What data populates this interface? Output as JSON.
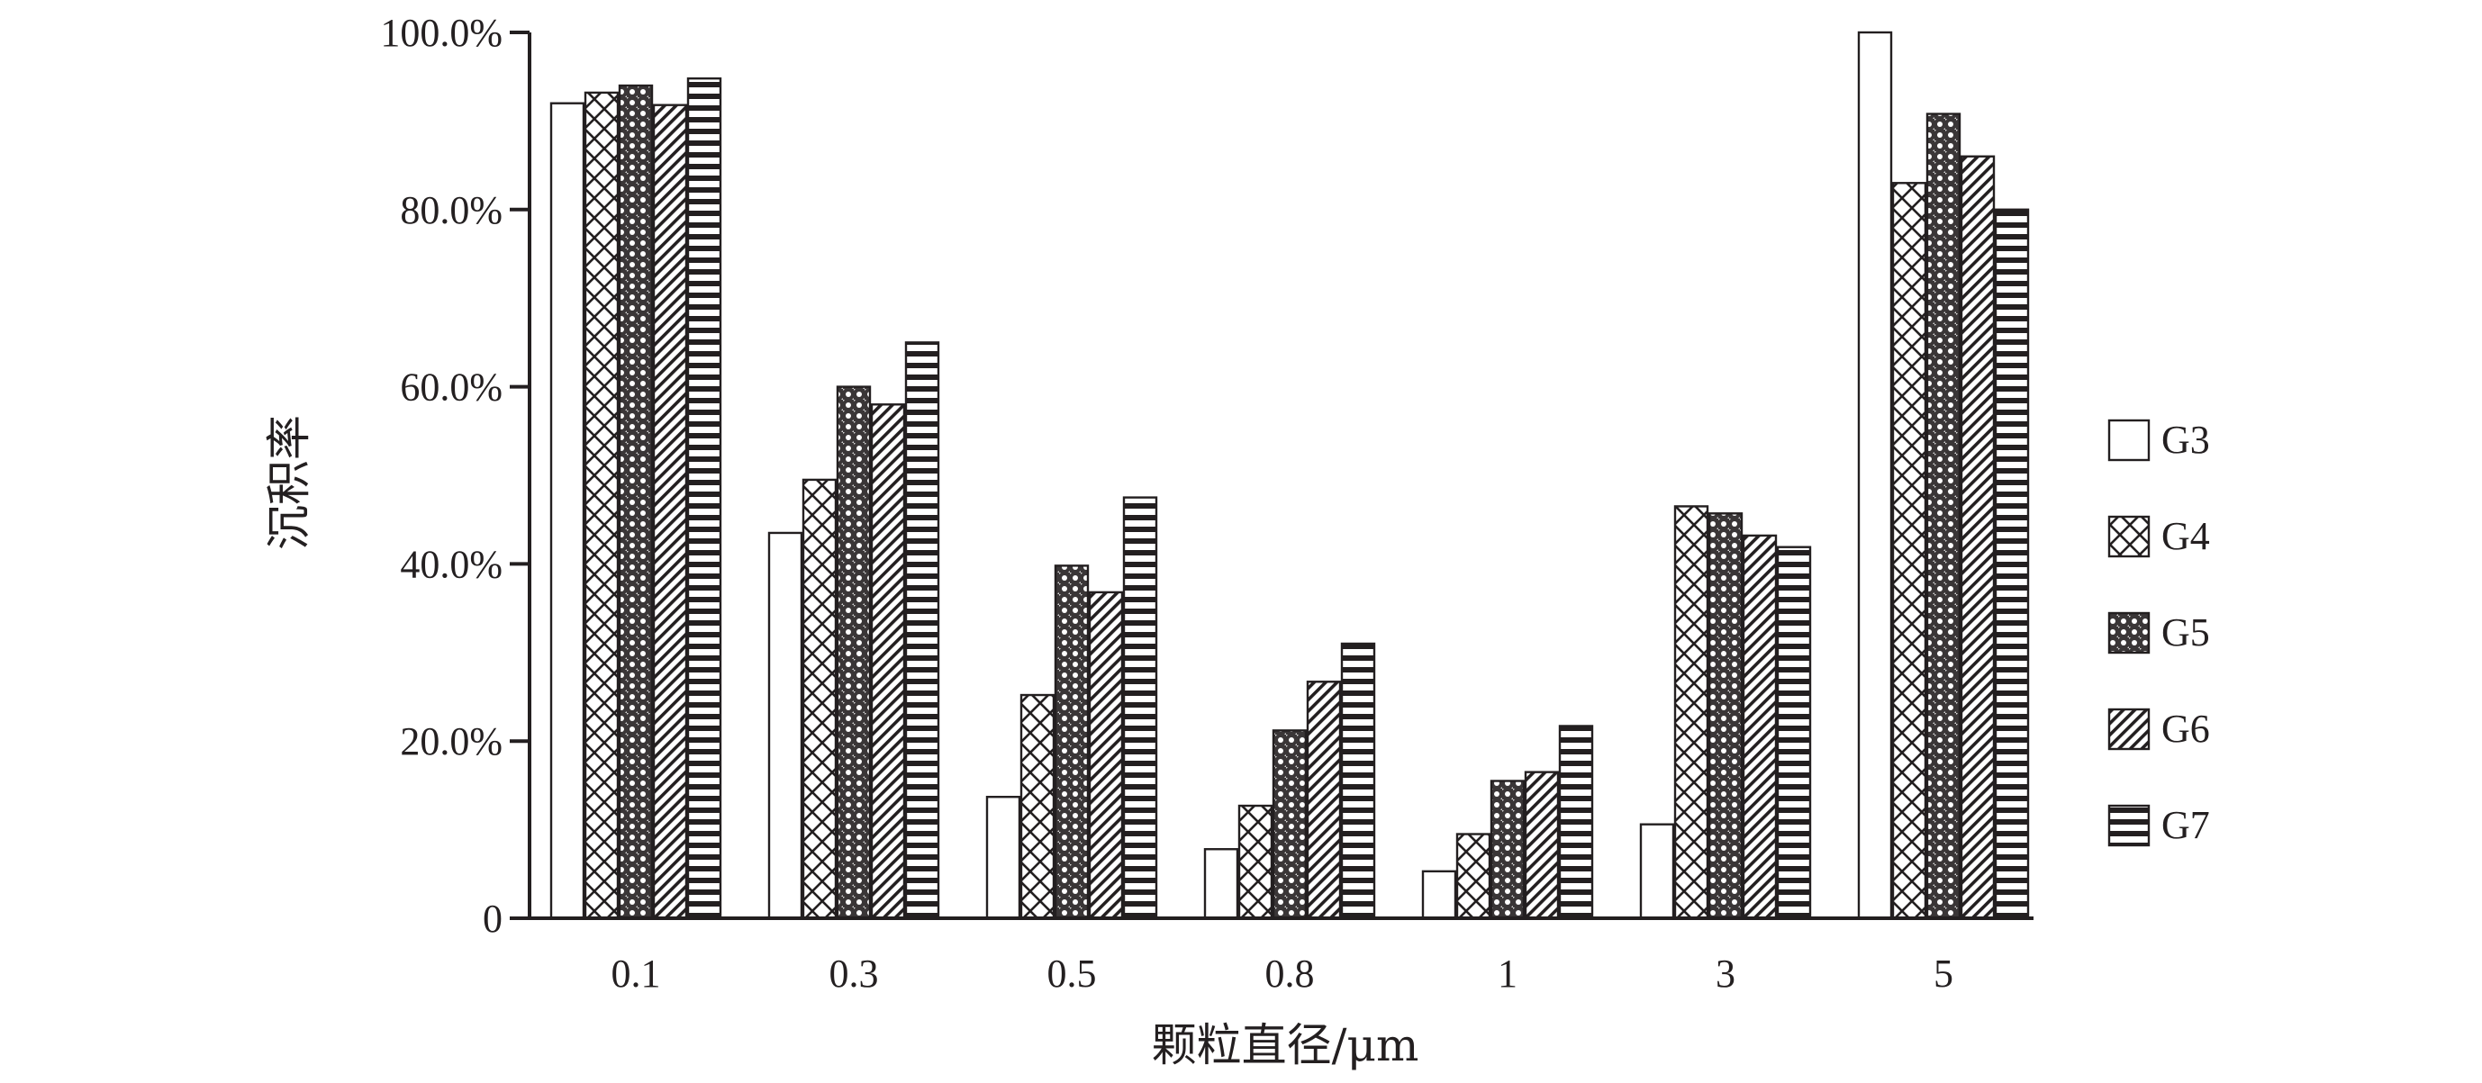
{
  "chart_data": {
    "type": "bar",
    "title": "",
    "xlabel": "颗粒直径/μm",
    "ylabel": "沉积率",
    "categories": [
      "0.1",
      "0.3",
      "0.5",
      "0.8",
      "1",
      "3",
      "5"
    ],
    "ylim": [
      0,
      100
    ],
    "y_ticks": [
      "0",
      "20.0%",
      "40.0%",
      "60.0%",
      "80.0%",
      "100.0%"
    ],
    "y_tick_values": [
      0,
      20,
      40,
      60,
      80,
      100
    ],
    "grid": false,
    "legend_position": "right",
    "series": [
      {
        "name": "G3",
        "pattern": "blank",
        "values": [
          92.0,
          43.5,
          13.7,
          7.8,
          5.3,
          10.6,
          100.0
        ]
      },
      {
        "name": "G4",
        "pattern": "crosshatch",
        "values": [
          93.2,
          49.5,
          25.2,
          12.7,
          9.5,
          46.5,
          83.0
        ]
      },
      {
        "name": "G5",
        "pattern": "dots",
        "values": [
          94.0,
          60.0,
          39.8,
          21.2,
          15.5,
          45.7,
          90.8
        ]
      },
      {
        "name": "G6",
        "pattern": "diagonal",
        "values": [
          91.8,
          58.0,
          36.8,
          26.7,
          16.5,
          43.2,
          86.0
        ]
      },
      {
        "name": "G7",
        "pattern": "horizontal",
        "values": [
          94.8,
          65.0,
          47.5,
          31.0,
          21.7,
          41.9,
          80.0
        ]
      }
    ],
    "colors": {
      "ink": "#231f20",
      "background": "#ffffff"
    }
  }
}
